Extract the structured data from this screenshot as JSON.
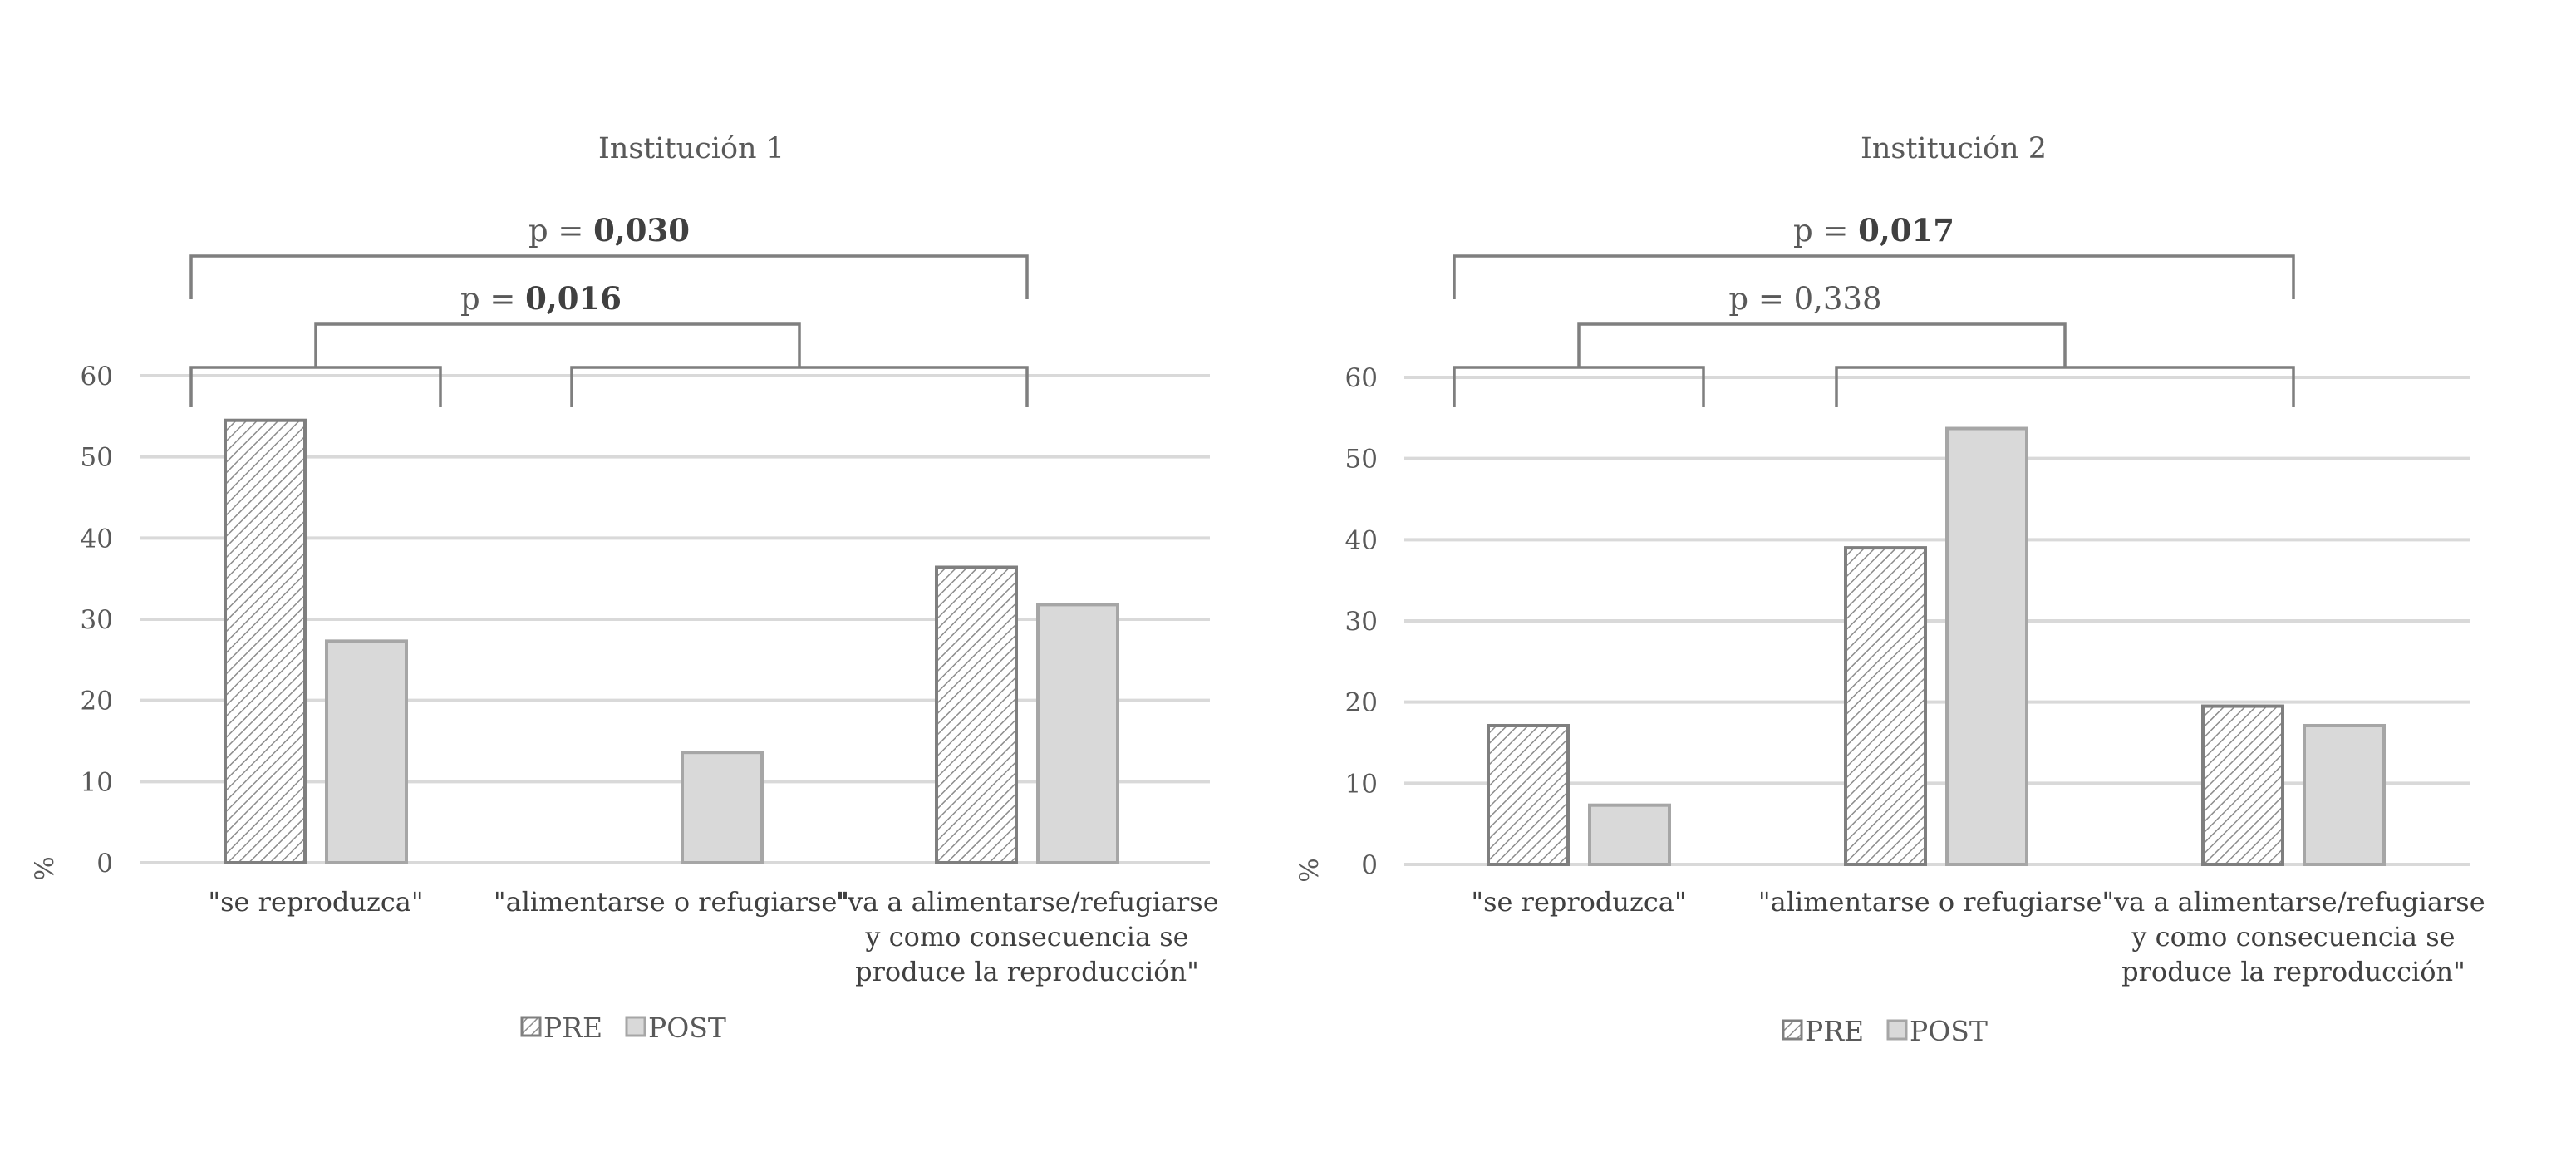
{
  "chart_data": [
    {
      "type": "bar",
      "title": "Institución 1",
      "ylabel": "%",
      "ylim": [
        0,
        60
      ],
      "yticks": [
        "0",
        "10",
        "20",
        "30",
        "40",
        "50",
        "60"
      ],
      "categories": [
        "\"se reproduzca\"",
        "\"alimentarse o refugiarse\"",
        "\"va a alimentarse/refugiarse y como consecuencia se produce la reproducción\""
      ],
      "category_lines": [
        [
          "\"se reproduzca\""
        ],
        [
          "\"alimentarse o refugiarse\""
        ],
        [
          "\"va a alimentarse/refugiarse",
          "y como consecuencia se",
          "produce la reproducción\""
        ]
      ],
      "series": [
        {
          "name": "PRE",
          "values": [
            54.5,
            0,
            36.4
          ],
          "pattern": "hatched",
          "fill": "#ffffff",
          "stroke": "#7f7f7f"
        },
        {
          "name": "POST",
          "values": [
            27.3,
            13.6,
            31.8
          ],
          "pattern": "solid",
          "fill": "#d9d9d9",
          "stroke": "#a6a6a6"
        }
      ],
      "comparisons": [
        {
          "prefix": "p = ",
          "value": "0,030",
          "bold": true,
          "from_category": 0,
          "to_category": 2,
          "level": "upper"
        },
        {
          "prefix": "p = ",
          "value": "0,016",
          "bold": true,
          "from_category": 0,
          "to_category": [
            1,
            2
          ],
          "level": "lower"
        }
      ],
      "legend": {
        "position": "bottom",
        "entries": [
          "PRE",
          "POST"
        ]
      },
      "grid": true
    },
    {
      "type": "bar",
      "title": "Institución 2",
      "ylabel": "%",
      "ylim": [
        0,
        60
      ],
      "yticks": [
        "0",
        "10",
        "20",
        "30",
        "40",
        "50",
        "60"
      ],
      "categories": [
        "\"se reproduzca\"",
        "\"alimentarse o refugiarse\"",
        "\"va a alimentarse/refugiarse y como consecuencia se produce la reproducción\""
      ],
      "category_lines": [
        [
          "\"se reproduzca\""
        ],
        [
          "\"alimentarse o refugiarse\""
        ],
        [
          "\"va a alimentarse/refugiarse",
          "y como consecuencia se",
          "produce la reproducción\""
        ]
      ],
      "series": [
        {
          "name": "PRE",
          "values": [
            17.1,
            39.0,
            19.5
          ],
          "pattern": "hatched",
          "fill": "#ffffff",
          "stroke": "#7f7f7f"
        },
        {
          "name": "POST",
          "values": [
            7.3,
            53.7,
            17.1
          ],
          "pattern": "solid",
          "fill": "#d9d9d9",
          "stroke": "#a6a6a6"
        }
      ],
      "comparisons": [
        {
          "prefix": "p = ",
          "value": "0,017",
          "bold": true,
          "from_category": 0,
          "to_category": 2,
          "level": "upper"
        },
        {
          "prefix": "p = ",
          "value": "0,338",
          "bold": false,
          "from_category": 0,
          "to_category": [
            1,
            2
          ],
          "level": "lower"
        }
      ],
      "legend": {
        "position": "bottom",
        "entries": [
          "PRE",
          "POST"
        ]
      },
      "grid": true
    }
  ]
}
